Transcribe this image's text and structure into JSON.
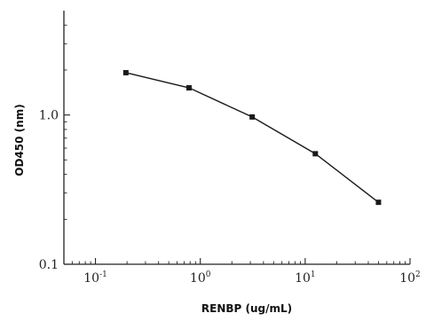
{
  "chart_data": {
    "type": "line",
    "title": "",
    "xlabel": "RENBP (ug/mL)",
    "ylabel": "OD450 (nm)",
    "x_scale": "log",
    "y_scale": "log",
    "xlim": [
      0.05,
      100
    ],
    "ylim": [
      0.1,
      5
    ],
    "grid": false,
    "x_ticks": [
      {
        "base": "10",
        "exp": "-1",
        "value": 0.1
      },
      {
        "base": "10",
        "exp": "0",
        "value": 1
      },
      {
        "base": "10",
        "exp": "1",
        "value": 10
      },
      {
        "base": "10",
        "exp": "2",
        "value": 100
      }
    ],
    "y_ticks": [
      {
        "label": "0.1",
        "value": 0.1
      },
      {
        "label": "1.0",
        "value": 1.0
      }
    ],
    "series": [
      {
        "x": [
          0.195,
          0.78,
          3.125,
          12.5,
          50
        ],
        "y": [
          1.92,
          1.52,
          0.97,
          0.55,
          0.26
        ],
        "color": "#1a1a1a",
        "marker": "square"
      }
    ]
  }
}
